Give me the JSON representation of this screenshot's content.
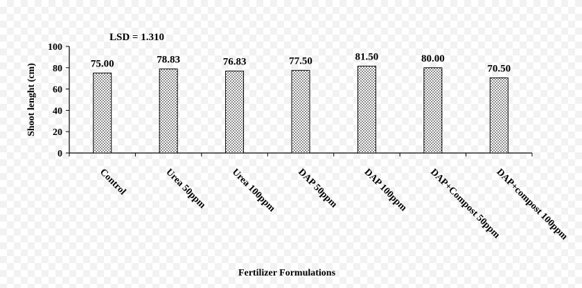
{
  "chart_data": {
    "type": "bar",
    "categories": [
      "Control",
      "Urea 50ppm",
      "Urea 100ppm",
      "DAP 50ppm",
      "DAP 100ppm",
      "DAP+Compost 50ppm",
      "DAP+compost 100ppm"
    ],
    "values": [
      75.0,
      78.83,
      76.83,
      77.5,
      81.5,
      80.0,
      70.5
    ],
    "value_labels": [
      "75.00",
      "78.83",
      "76.83",
      "77.50",
      "81.50",
      "80.00",
      "70.50"
    ],
    "xlabel": "Fertilizer Formulations",
    "ylabel": "Shoot lenght (cm)",
    "ylim": [
      0,
      100
    ],
    "yticks": [
      "0",
      "20",
      "40",
      "60",
      "80",
      "100"
    ],
    "annotation": "LSD = 1.310",
    "grid": false,
    "legend": "none",
    "bar_pattern": "dotted"
  }
}
